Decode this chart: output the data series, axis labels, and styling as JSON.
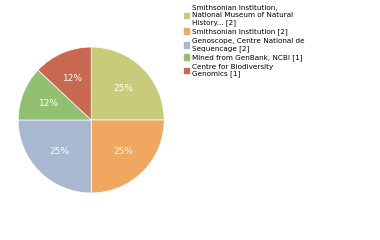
{
  "slices": [
    {
      "label": "Smithsonian Institution,\nNational Museum of Natural\nHistory... [2]",
      "value": 25,
      "color": "#c8cc7a"
    },
    {
      "label": "Smithsonian Institution [2]",
      "value": 25,
      "color": "#f0a860"
    },
    {
      "label": "Genoscope, Centre National de\nSequencage [2]",
      "value": 25,
      "color": "#a8b8d0"
    },
    {
      "label": "Mined from GenBank, NCBI [1]",
      "value": 12,
      "color": "#90c070"
    },
    {
      "label": "Centre for Biodiversity\nGenomics [1]",
      "value": 13,
      "color": "#c86850"
    }
  ],
  "pct_labels": [
    "25%",
    "25%",
    "25%",
    "12%",
    "12%"
  ],
  "startangle": 90,
  "background_color": "#ffffff",
  "font_size": 6.5
}
